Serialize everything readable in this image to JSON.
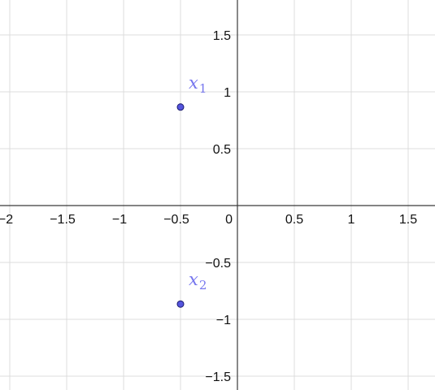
{
  "chart_data": {
    "type": "scatter",
    "title": "",
    "xlabel": "",
    "ylabel": "",
    "xlim": [
      -2.05,
      1.75
    ],
    "ylim": [
      -1.62,
      1.8
    ],
    "grid": true,
    "x_ticks": [
      -2,
      -1.5,
      -1,
      -0.5,
      0,
      0.5,
      1,
      1.5
    ],
    "x_tick_labels": [
      "−2",
      "−1.5",
      "−1",
      "−0.5",
      "0",
      "0.5",
      "1",
      "1.5"
    ],
    "y_ticks": [
      -1.5,
      -1,
      -0.5,
      0.5,
      1,
      1.5
    ],
    "y_tick_labels": [
      "−1.5",
      "−1",
      "−0.5",
      "0.5",
      "1",
      "1.5"
    ],
    "series": [
      {
        "points": [
          {
            "label": "x",
            "subscript": "1",
            "x": -0.5,
            "y": 0.866
          },
          {
            "label": "x",
            "subscript": "2",
            "x": -0.5,
            "y": -0.866
          }
        ]
      }
    ],
    "point_color": "#5555dd",
    "point_outline": "#1a1a6e",
    "label_color": "#7777ee"
  }
}
